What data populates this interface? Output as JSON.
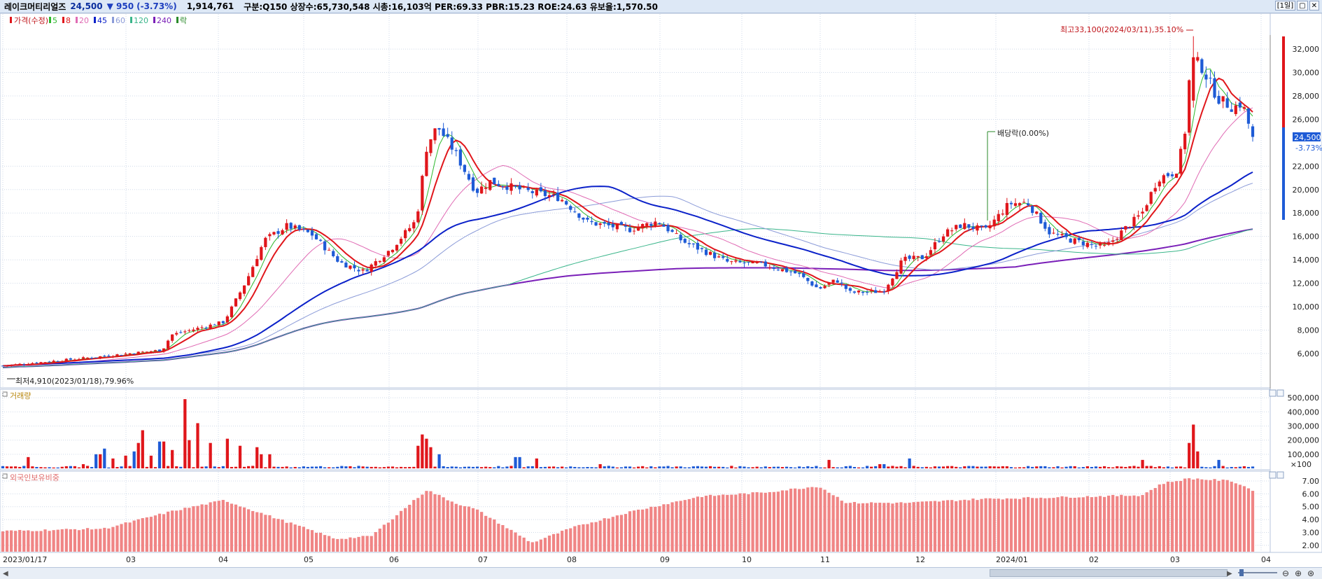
{
  "header": {
    "stock_name": "레이크머티리얼즈",
    "price": "24,500",
    "change": "▼ 950",
    "change_pct": "(-3.73%)",
    "volume": "1,914,761",
    "info": "구분:Q150 상장수:65,730,548 시총:16,103억 PER:69.33 PBR:15.23 ROE:24.63 유보율:1,570.50",
    "period_button": "[1일]"
  },
  "legend": {
    "price_label": "가격(수정)",
    "ma_items": [
      {
        "label": "5",
        "color": "#2db82d"
      },
      {
        "label": "8",
        "color": "#e0161b"
      },
      {
        "label": "20",
        "color": "#e06bb4"
      },
      {
        "label": "45",
        "color": "#0b21c9"
      },
      {
        "label": "60",
        "color": "#8b9bd8"
      },
      {
        "label": "120",
        "color": "#39b58a"
      },
      {
        "label": "240",
        "color": "#7a1fb8"
      }
    ],
    "ex_div_label": "락"
  },
  "annotations": {
    "high": "최고33,100(2024/03/11),35.10%",
    "low": "최저4,910(2023/01/18),79.96%",
    "dividend": "배당락(0.00%)"
  },
  "price_axis": {
    "ticks": [
      "32,000",
      "30,000",
      "28,000",
      "26,000",
      "22,000",
      "20,000",
      "18,000",
      "16,000",
      "14,000",
      "12,000",
      "10,000",
      "8,000",
      "6,000"
    ],
    "current_price": "24,500",
    "current_pct": "-3.73%"
  },
  "volume_panel": {
    "title": "거래량",
    "ticks": [
      "500,000",
      "400,000",
      "300,000",
      "200,000",
      "100,000"
    ],
    "unit": "×100"
  },
  "foreign_panel": {
    "title": "외국인보유비중",
    "ticks": [
      "7.00",
      "6.00",
      "5.00",
      "4.00",
      "3.00",
      "2.00"
    ]
  },
  "x_axis": {
    "labels": [
      "2023/01/17",
      "03",
      "04",
      "05",
      "06",
      "07",
      "08",
      "09",
      "10",
      "11",
      "12",
      "2024/01",
      "02",
      "03",
      "04"
    ]
  },
  "chart_data": {
    "type": "candlestick",
    "price_ylim": [
      4200,
      33800
    ],
    "key_closes": [
      {
        "date": "2023/01/17",
        "close": 5000
      },
      {
        "date": "2023/03 end",
        "close": 7800
      },
      {
        "date": "2023/04 end",
        "close": 17000
      },
      {
        "date": "2023/06 mid",
        "close": 25500
      },
      {
        "date": "2023/08 start",
        "close": 19500
      },
      {
        "date": "2023/11 start",
        "close": 11500
      },
      {
        "date": "2023/12 mid",
        "close": 18000
      },
      {
        "date": "2024/01 start",
        "close": 19000
      },
      {
        "date": "2024/02 start",
        "close": 15000
      },
      {
        "date": "2024/03/11",
        "close": 31000
      },
      {
        "date": "2024/03 end",
        "close": 24500
      }
    ],
    "volume_ylim": [
      0,
      550000
    ],
    "foreign_ylim": [
      1.5,
      7.6
    ]
  },
  "colors": {
    "up": "#e0161b",
    "down": "#1e5bd6",
    "foreign_bar": "#f08585",
    "high_text": "#c0141a",
    "grid": "#cfd9e8"
  }
}
